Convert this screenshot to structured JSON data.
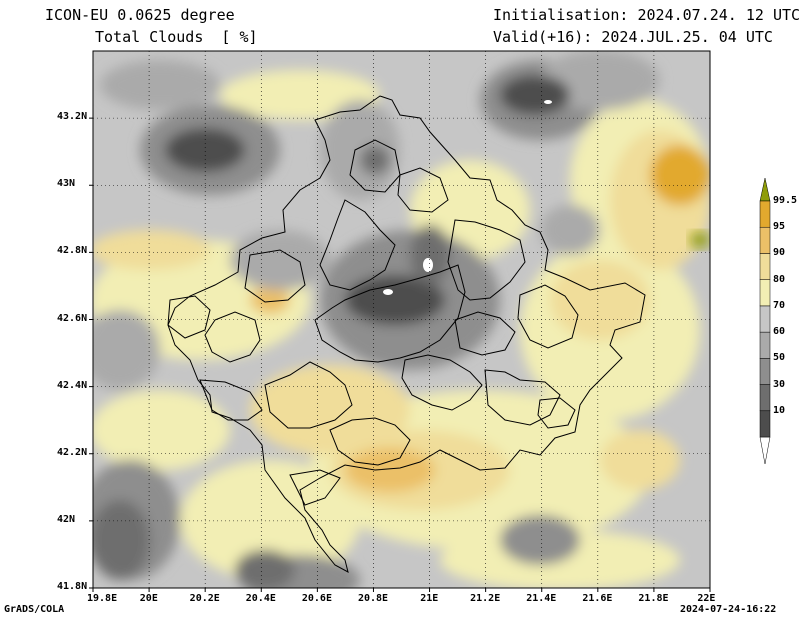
{
  "header": {
    "model": "ICON-EU 0.0625 degree",
    "variable": "Total Clouds  [ %]",
    "init": "Initialisation: 2024.07.24. 12 UTC",
    "valid": "Valid(+16): 2024.JUL.25. 04 UTC"
  },
  "footer": {
    "software": "GrADS/COLA",
    "timestamp": "2024-07-24-16:22"
  },
  "map": {
    "lon_ticks": [
      "19.8E",
      "20E",
      "20.2E",
      "20.4E",
      "20.6E",
      "20.8E",
      "21E",
      "21.2E",
      "21.4E",
      "21.6E",
      "21.8E",
      "22E"
    ],
    "lat_ticks": [
      "43.2N",
      "43N",
      "42.8N",
      "42.6N",
      "42.4N",
      "42.2N",
      "42N",
      "41.8N"
    ],
    "lon_range": [
      19.8,
      22.0
    ],
    "lat_range": [
      41.8,
      43.4
    ]
  },
  "legend": {
    "levels": [
      "10",
      "30",
      "50",
      "60",
      "70",
      "80",
      "90",
      "95",
      "99.5"
    ],
    "colors": [
      "#4d4d4d",
      "#6e6e6e",
      "#8e8e8e",
      "#aaaaaa",
      "#c6c6c6",
      "#f2eeb4",
      "#f0dd9a",
      "#ebc068",
      "#e2a92e",
      "#8f9c08"
    ]
  }
}
